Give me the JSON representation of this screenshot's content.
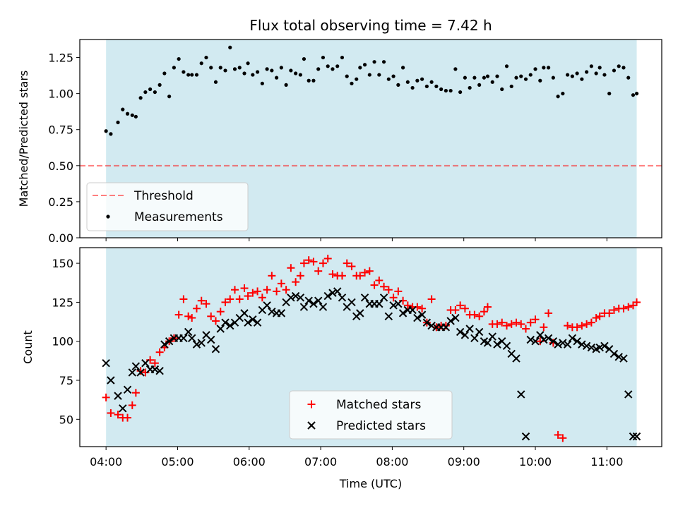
{
  "title": "Flux total observing time = 7.42 h",
  "colors": {
    "span": "#add8e6",
    "threshold": "#ff0000",
    "measurement": "#000000",
    "matched": "#ff0000",
    "predicted": "#000000"
  },
  "chart_data": [
    {
      "type": "scatter",
      "ylabel": "Matched/Predicted stars",
      "ylim": [
        0.0,
        1.375
      ],
      "xlim": [
        "03:38",
        "11:46"
      ],
      "yticks": [
        "0.00",
        "0.25",
        "0.50",
        "0.75",
        "1.00",
        "1.25"
      ],
      "ytick_values": [
        0.0,
        0.25,
        0.5,
        0.75,
        1.0,
        1.25
      ],
      "shaded_span": [
        "04:00",
        "11:25"
      ],
      "threshold": 0.5,
      "legend": {
        "position": "lower-left",
        "entries": [
          "Threshold",
          "Measurements"
        ]
      },
      "series": [
        {
          "name": "Measurements",
          "marker": "dot",
          "x": [
            "04:00",
            "04:04",
            "04:10",
            "04:14",
            "04:18",
            "04:22",
            "04:25",
            "04:29",
            "04:33",
            "04:37",
            "04:41",
            "04:45",
            "04:49",
            "04:53",
            "04:57",
            "05:01",
            "05:05",
            "05:09",
            "05:12",
            "05:16",
            "05:20",
            "05:24",
            "05:28",
            "05:32",
            "05:36",
            "05:40",
            "05:44",
            "05:48",
            "05:52",
            "05:56",
            "05:59",
            "06:03",
            "06:07",
            "06:11",
            "06:15",
            "06:19",
            "06:23",
            "06:27",
            "06:31",
            "06:35",
            "06:39",
            "06:43",
            "06:46",
            "06:50",
            "06:54",
            "06:58",
            "07:02",
            "07:06",
            "07:10",
            "07:14",
            "07:18",
            "07:22",
            "07:26",
            "07:30",
            "07:33",
            "07:37",
            "07:41",
            "07:45",
            "07:49",
            "07:53",
            "07:57",
            "08:01",
            "08:05",
            "08:09",
            "08:13",
            "08:17",
            "08:21",
            "08:25",
            "08:29",
            "08:33",
            "08:37",
            "08:41",
            "08:45",
            "08:49",
            "08:53",
            "08:57",
            "09:01",
            "09:05",
            "09:09",
            "09:13",
            "09:17",
            "09:20",
            "09:24",
            "09:28",
            "09:32",
            "09:36",
            "09:40",
            "09:44",
            "09:48",
            "09:52",
            "09:56",
            "10:00",
            "10:04",
            "10:07",
            "10:11",
            "10:15",
            "10:19",
            "10:23",
            "10:27",
            "10:31",
            "10:35",
            "10:39",
            "10:43",
            "10:47",
            "10:51",
            "10:54",
            "10:58",
            "11:02",
            "11:06",
            "11:10",
            "11:14",
            "11:18",
            "11:22",
            "11:25"
          ],
          "y": [
            0.74,
            0.72,
            0.8,
            0.89,
            0.86,
            0.85,
            0.84,
            0.97,
            1.01,
            1.03,
            1.01,
            1.06,
            1.14,
            0.98,
            1.18,
            1.24,
            1.15,
            1.13,
            1.13,
            1.13,
            1.21,
            1.25,
            1.18,
            1.08,
            1.18,
            1.16,
            1.32,
            1.17,
            1.18,
            1.14,
            1.21,
            1.13,
            1.15,
            1.07,
            1.17,
            1.16,
            1.11,
            1.18,
            1.06,
            1.16,
            1.14,
            1.13,
            1.24,
            1.09,
            1.09,
            1.17,
            1.25,
            1.19,
            1.17,
            1.19,
            1.25,
            1.12,
            1.07,
            1.1,
            1.18,
            1.2,
            1.13,
            1.22,
            1.13,
            1.22,
            1.1,
            1.12,
            1.06,
            1.18,
            1.08,
            1.04,
            1.09,
            1.1,
            1.05,
            1.08,
            1.05,
            1.03,
            1.02,
            1.02,
            1.17,
            1.01,
            1.11,
            1.04,
            1.11,
            1.06,
            1.11,
            1.12,
            1.08,
            1.12,
            1.03,
            1.19,
            1.05,
            1.11,
            1.12,
            1.1,
            1.13,
            1.17,
            1.09,
            1.18,
            1.18,
            1.11,
            0.98,
            1.0,
            1.13,
            1.12,
            1.14,
            1.1,
            1.15,
            1.19,
            1.14,
            1.18,
            1.13,
            1.0,
            1.16,
            1.19,
            1.18,
            1.11,
            0.99,
            1.0
          ]
        }
      ]
    },
    {
      "type": "scatter",
      "xlabel": "Time (UTC)",
      "ylabel": "Count",
      "ylim": [
        32.5,
        160.0
      ],
      "xlim": [
        "03:38",
        "11:46"
      ],
      "xticks": [
        "04:00",
        "05:00",
        "06:00",
        "07:00",
        "08:00",
        "09:00",
        "10:00",
        "11:00"
      ],
      "yticks": [
        "50",
        "75",
        "100",
        "125",
        "150"
      ],
      "ytick_values": [
        50,
        75,
        100,
        125,
        150
      ],
      "shaded_span": [
        "04:00",
        "11:25"
      ],
      "legend": {
        "position": "lower-center",
        "entries": [
          "Matched stars",
          "Predicted stars"
        ]
      },
      "x": [
        "04:00",
        "04:04",
        "04:10",
        "04:14",
        "04:18",
        "04:22",
        "04:25",
        "04:29",
        "04:33",
        "04:37",
        "04:41",
        "04:45",
        "04:49",
        "04:53",
        "04:57",
        "05:01",
        "05:05",
        "05:09",
        "05:12",
        "05:16",
        "05:20",
        "05:24",
        "05:28",
        "05:32",
        "05:36",
        "05:40",
        "05:44",
        "05:48",
        "05:52",
        "05:56",
        "05:59",
        "06:03",
        "06:07",
        "06:11",
        "06:15",
        "06:19",
        "06:23",
        "06:27",
        "06:31",
        "06:35",
        "06:39",
        "06:43",
        "06:46",
        "06:50",
        "06:54",
        "06:58",
        "07:02",
        "07:06",
        "07:10",
        "07:14",
        "07:18",
        "07:22",
        "07:26",
        "07:30",
        "07:33",
        "07:37",
        "07:41",
        "07:45",
        "07:49",
        "07:53",
        "07:57",
        "08:01",
        "08:05",
        "08:09",
        "08:13",
        "08:17",
        "08:21",
        "08:25",
        "08:29",
        "08:33",
        "08:37",
        "08:41",
        "08:45",
        "08:49",
        "08:53",
        "08:57",
        "09:01",
        "09:05",
        "09:09",
        "09:13",
        "09:17",
        "09:20",
        "09:24",
        "09:28",
        "09:32",
        "09:36",
        "09:40",
        "09:44",
        "09:48",
        "09:52",
        "09:56",
        "10:00",
        "10:04",
        "10:07",
        "10:11",
        "10:15",
        "10:19",
        "10:23",
        "10:27",
        "10:31",
        "10:35",
        "10:39",
        "10:43",
        "10:47",
        "10:51",
        "10:54",
        "10:58",
        "11:02",
        "11:06",
        "11:10",
        "11:14",
        "11:18",
        "11:22",
        "11:25"
      ],
      "series": [
        {
          "name": "Matched stars",
          "marker": "plus",
          "values": [
            64,
            54,
            53,
            51,
            51,
            59,
            67,
            81,
            80,
            88,
            86,
            93,
            96,
            100,
            102,
            117,
            127,
            116,
            115,
            121,
            126,
            124,
            116,
            113,
            119,
            125,
            127,
            133,
            127,
            134,
            129,
            131,
            132,
            128,
            133,
            142,
            132,
            137,
            133,
            147,
            138,
            142,
            150,
            152,
            151,
            145,
            150,
            153,
            143,
            142,
            142,
            150,
            148,
            142,
            142,
            144,
            145,
            136,
            139,
            135,
            133,
            128,
            132,
            126,
            123,
            122,
            122,
            121,
            112,
            127,
            109,
            110,
            110,
            120,
            120,
            123,
            121,
            117,
            117,
            116,
            119,
            122,
            111,
            111,
            112,
            110,
            111,
            112,
            111,
            108,
            112,
            114,
            100,
            109,
            118,
            99,
            40,
            38,
            110,
            109,
            109,
            110,
            111,
            112,
            115,
            116,
            118,
            118,
            120,
            121,
            121,
            122,
            123,
            125
          ]
        },
        {
          "name": "Predicted stars",
          "marker": "x",
          "values": [
            86,
            75,
            65,
            57,
            69,
            80,
            84,
            80,
            86,
            82,
            82,
            81,
            98,
            100,
            102,
            102,
            102,
            106,
            102,
            98,
            99,
            104,
            101,
            95,
            108,
            112,
            110,
            112,
            115,
            118,
            112,
            114,
            112,
            120,
            123,
            119,
            118,
            118,
            125,
            128,
            129,
            128,
            122,
            126,
            124,
            126,
            122,
            129,
            131,
            132,
            128,
            122,
            125,
            116,
            118,
            128,
            124,
            124,
            124,
            128,
            116,
            123,
            124,
            118,
            120,
            120,
            115,
            117,
            112,
            110,
            109,
            109,
            109,
            113,
            115,
            106,
            104,
            108,
            102,
            106,
            100,
            99,
            103,
            98,
            100,
            97,
            92,
            89,
            66,
            39,
            101,
            100,
            104,
            101,
            102,
            100,
            98,
            99,
            98,
            102,
            100,
            98,
            97,
            96,
            95,
            96,
            97,
            95,
            92,
            90,
            89,
            66,
            39,
            39
          ]
        }
      ]
    }
  ]
}
